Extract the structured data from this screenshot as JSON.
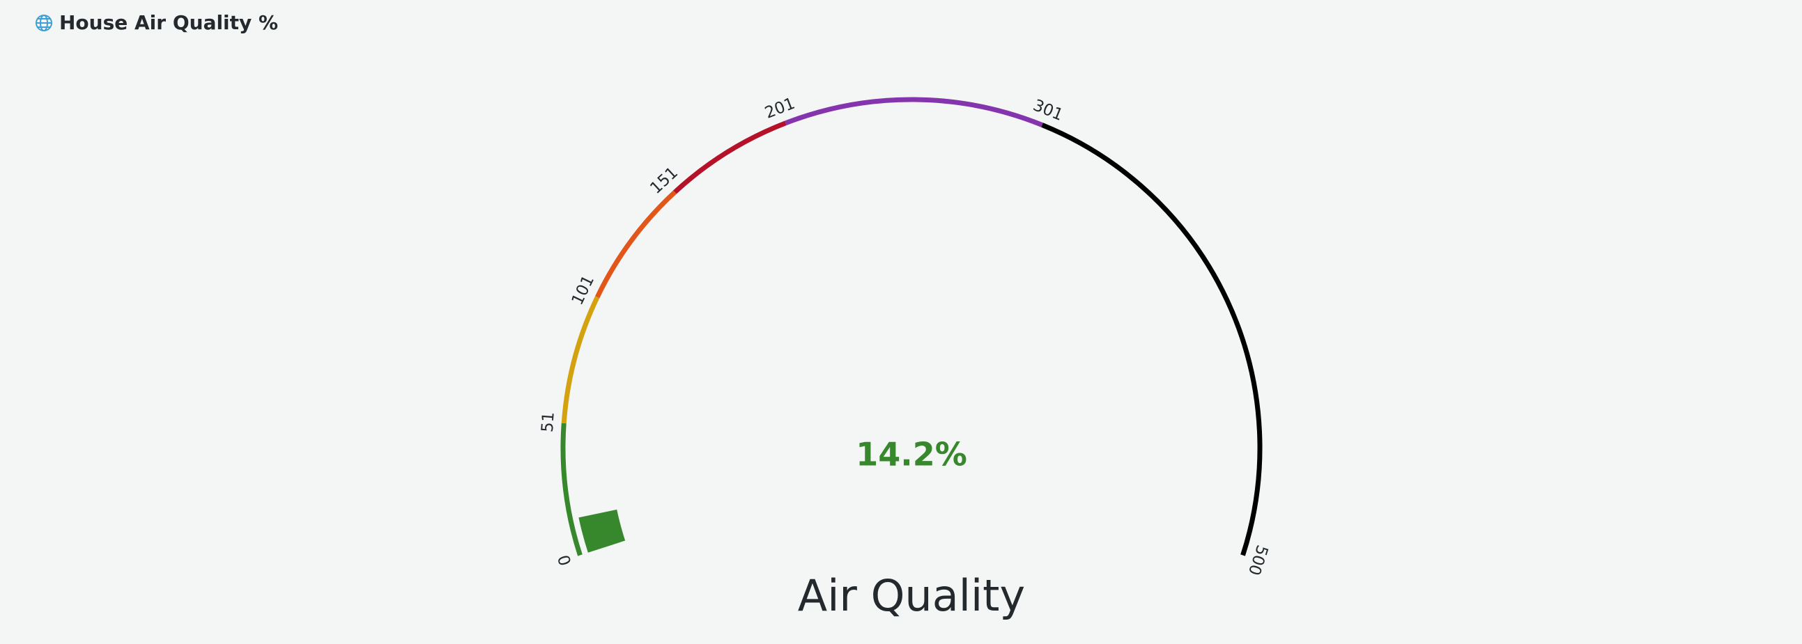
{
  "chart_data": {
    "type": "gauge",
    "title": "House Air Quality %",
    "value": 14.2,
    "value_label": "14.2%",
    "color": "#37872d",
    "label": "Air Quality",
    "lim": [
      0,
      500
    ],
    "ticks": [
      0,
      51,
      101,
      151,
      201,
      301,
      500
    ],
    "band_colors": [
      "#37872d",
      "#d4a10f",
      "#e2561a",
      "#b5122a",
      "#8434ad",
      "#000000"
    ]
  }
}
